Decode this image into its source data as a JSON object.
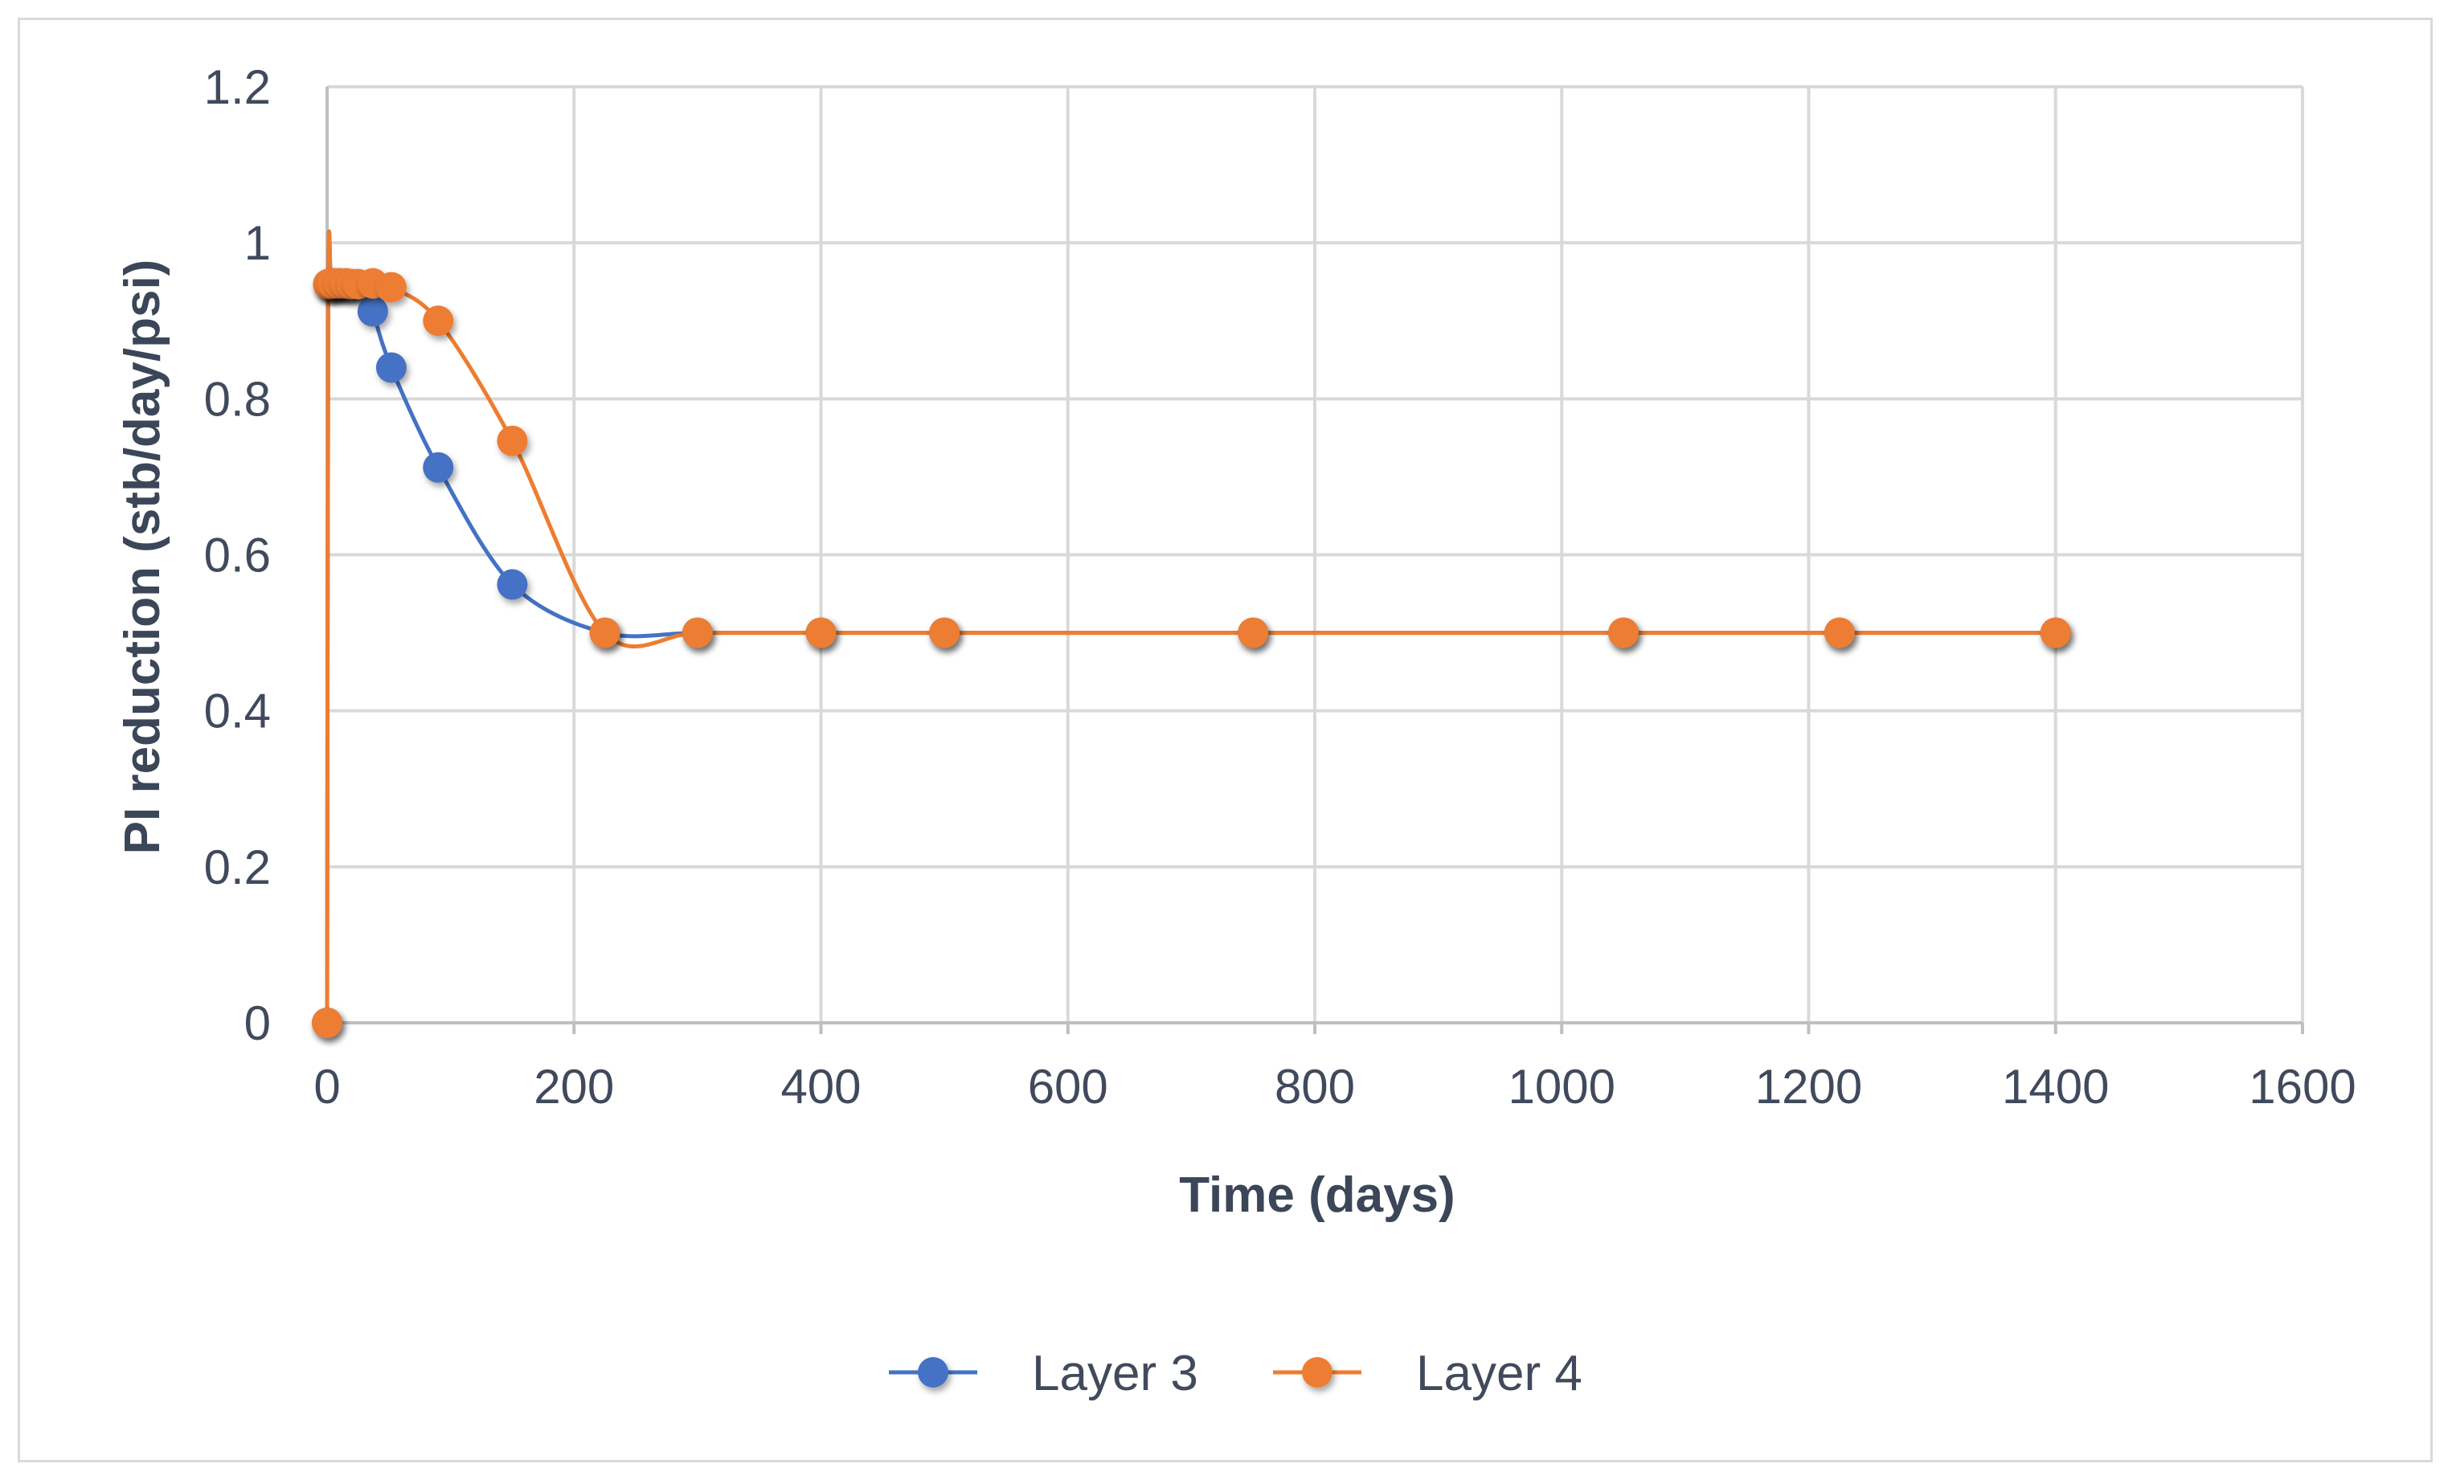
{
  "chart_data": {
    "type": "scatter",
    "title": "",
    "xlabel": "Time (days)",
    "ylabel": "PI reduction (stb/day/psi)",
    "xlim": [
      0,
      1600
    ],
    "ylim": [
      0,
      1.2
    ],
    "xticks": [
      0,
      200,
      400,
      600,
      800,
      1000,
      1200,
      1400,
      1600
    ],
    "yticks": [
      0,
      0.2,
      0.4,
      0.6,
      0.8,
      1,
      1.2
    ],
    "grid": true,
    "legend_position": "bottom",
    "series": [
      {
        "name": "Layer 3",
        "color": "#4472c4",
        "points": [
          [
            0,
            0
          ],
          [
            1,
            0.947
          ],
          [
            3,
            0.947
          ],
          [
            5,
            0.947
          ],
          [
            10,
            0.947
          ],
          [
            15,
            0.947
          ],
          [
            20,
            0.945
          ],
          [
            30,
            0.945
          ],
          [
            37,
            0.912
          ],
          [
            52,
            0.84
          ],
          [
            90,
            0.712
          ],
          [
            150,
            0.562
          ],
          [
            225,
            0.5
          ],
          [
            300,
            0.5
          ],
          [
            400,
            0.5
          ],
          [
            500,
            0.5
          ],
          [
            750,
            0.5
          ],
          [
            1050,
            0.5
          ],
          [
            1225,
            0.5
          ],
          [
            1400,
            0.5
          ]
        ]
      },
      {
        "name": "Layer 4",
        "color": "#ed7d31",
        "points": [
          [
            0,
            0
          ],
          [
            1,
            0.947
          ],
          [
            3,
            0.948
          ],
          [
            5,
            0.948
          ],
          [
            10,
            0.948
          ],
          [
            15,
            0.948
          ],
          [
            20,
            0.947
          ],
          [
            25,
            0.947
          ],
          [
            37,
            0.948
          ],
          [
            52,
            0.943
          ],
          [
            90,
            0.9
          ],
          [
            150,
            0.746
          ],
          [
            225,
            0.5
          ],
          [
            300,
            0.5
          ],
          [
            400,
            0.5
          ],
          [
            500,
            0.5
          ],
          [
            750,
            0.5
          ],
          [
            1050,
            0.5
          ],
          [
            1225,
            0.5
          ],
          [
            1400,
            0.5
          ]
        ]
      }
    ]
  }
}
